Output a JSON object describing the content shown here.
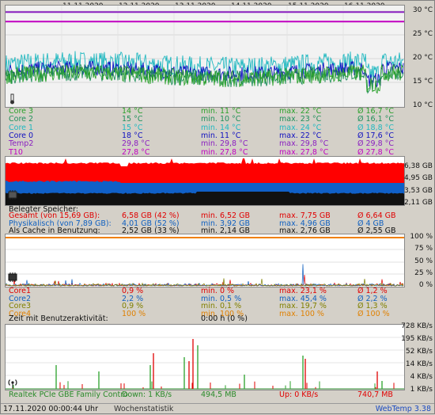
{
  "dates": [
    "11.11.2020",
    "12.11.2020",
    "13.11.2020",
    "14.11.2020",
    "15.11.2020",
    "16.11.2020"
  ],
  "temp": {
    "yticks": [
      "30 °C",
      "25 °C",
      "20 °C",
      "15 °C",
      "10 °C"
    ],
    "rows": [
      {
        "name": "Core 3",
        "cur": "14 °C",
        "min": "min. 11 °C",
        "max": "max. 22 °C",
        "avg": "Ø 16,7 °C",
        "color": "#2aa12a"
      },
      {
        "name": "Core 2",
        "cur": "15 °C",
        "min": "min. 10 °C",
        "max": "max. 23 °C",
        "avg": "Ø 16,1 °C",
        "color": "#1f8f5a"
      },
      {
        "name": "Core 1",
        "cur": "15 °C",
        "min": "min. 14 °C",
        "max": "max. 24 °C",
        "avg": "Ø 18,8 °C",
        "color": "#20b8c0"
      },
      {
        "name": "Core 0",
        "cur": "18 °C",
        "min": "min. 11 °C",
        "max": "max. 22 °C",
        "avg": "Ø 17,6 °C",
        "color": "#1010c0"
      },
      {
        "name": "Temp2",
        "cur": "29,8 °C",
        "min": "min. 29,8 °C",
        "max": "max. 29,8 °C",
        "avg": "Ø 29,8 °C",
        "color": "#8a20c0"
      },
      {
        "name": "T10",
        "cur": "27,8 °C",
        "min": "min. 27,8 °C",
        "max": "max. 27,8 °C",
        "avg": "Ø 27,8 °C",
        "color": "#c000c0"
      }
    ]
  },
  "mem": {
    "yticks": [
      "6,38 GB",
      "4,95 GB",
      "3,53 GB",
      "2,11 GB"
    ],
    "header": "Belegter Speicher:",
    "rows": [
      {
        "name": "Gesamt (von 15,69 GB):",
        "cur": "6,58 GB (42 %)",
        "min": "min. 6,52 GB",
        "max": "max. 7,75 GB",
        "avg": "Ø 6,64 GB",
        "color": "#e00000"
      },
      {
        "name": "Physikalisch (von 7,89 GB):",
        "cur": "4,01 GB (52 %)",
        "min": "min. 3,92 GB",
        "max": "max. 4,96 GB",
        "avg": "Ø 4 GB",
        "color": "#1060c0"
      },
      {
        "name": "Als Cache in Benutzung:",
        "cur": "2,52 GB (33 %)",
        "min": "min. 2,14 GB",
        "max": "max. 2,76 GB",
        "avg": "Ø 2,55 GB",
        "color": "#111111"
      }
    ]
  },
  "cpu": {
    "yticks": [
      "100 %",
      "75 %",
      "50 %",
      "25 %",
      "0 %"
    ],
    "rows": [
      {
        "name": "Core1",
        "cur": "0,9 %",
        "min": "min. 0 %",
        "max": "max. 23,1 %",
        "avg": "Ø 1,2 %",
        "color": "#e00000"
      },
      {
        "name": "Core2",
        "cur": "2,2 %",
        "min": "min. 0,5 %",
        "max": "max. 45,4 %",
        "avg": "Ø 2,2 %",
        "color": "#1060c0"
      },
      {
        "name": "Core3",
        "cur": "0,9 %",
        "min": "min. 0,1 %",
        "max": "max. 19,7 %",
        "avg": "Ø 1,3 %",
        "color": "#808000"
      },
      {
        "name": "Core4",
        "cur": "100 %",
        "min": "min. 100 %",
        "max": "max. 100 %",
        "avg": "Ø 100 %",
        "color": "#e08000"
      }
    ],
    "activity_label": "Zeit mit Benutzeraktivität:",
    "activity_value": "0:00 h (0 %)"
  },
  "net": {
    "yticks": [
      "728 KB/s",
      "195 KB/s",
      "52 KB/s",
      "14 KB/s",
      "4 KB/s",
      "1 KB/s"
    ],
    "adapter": "Realtek PCIe GBE Family Contro",
    "down": "Down: 1 KB/s",
    "down_total": "494,5 MB",
    "up": "Up: 0 KB/s",
    "up_total": "740,7 MB"
  },
  "footer": {
    "datetime": "17.11.2020 00:00:44 Uhr",
    "mode": "Wochenstatistik",
    "app": "WebTemp 3.38"
  },
  "icons": [
    "thermometer-icon",
    "memory-chip-icon",
    "cpu-chip-icon",
    "network-antenna-icon"
  ]
}
